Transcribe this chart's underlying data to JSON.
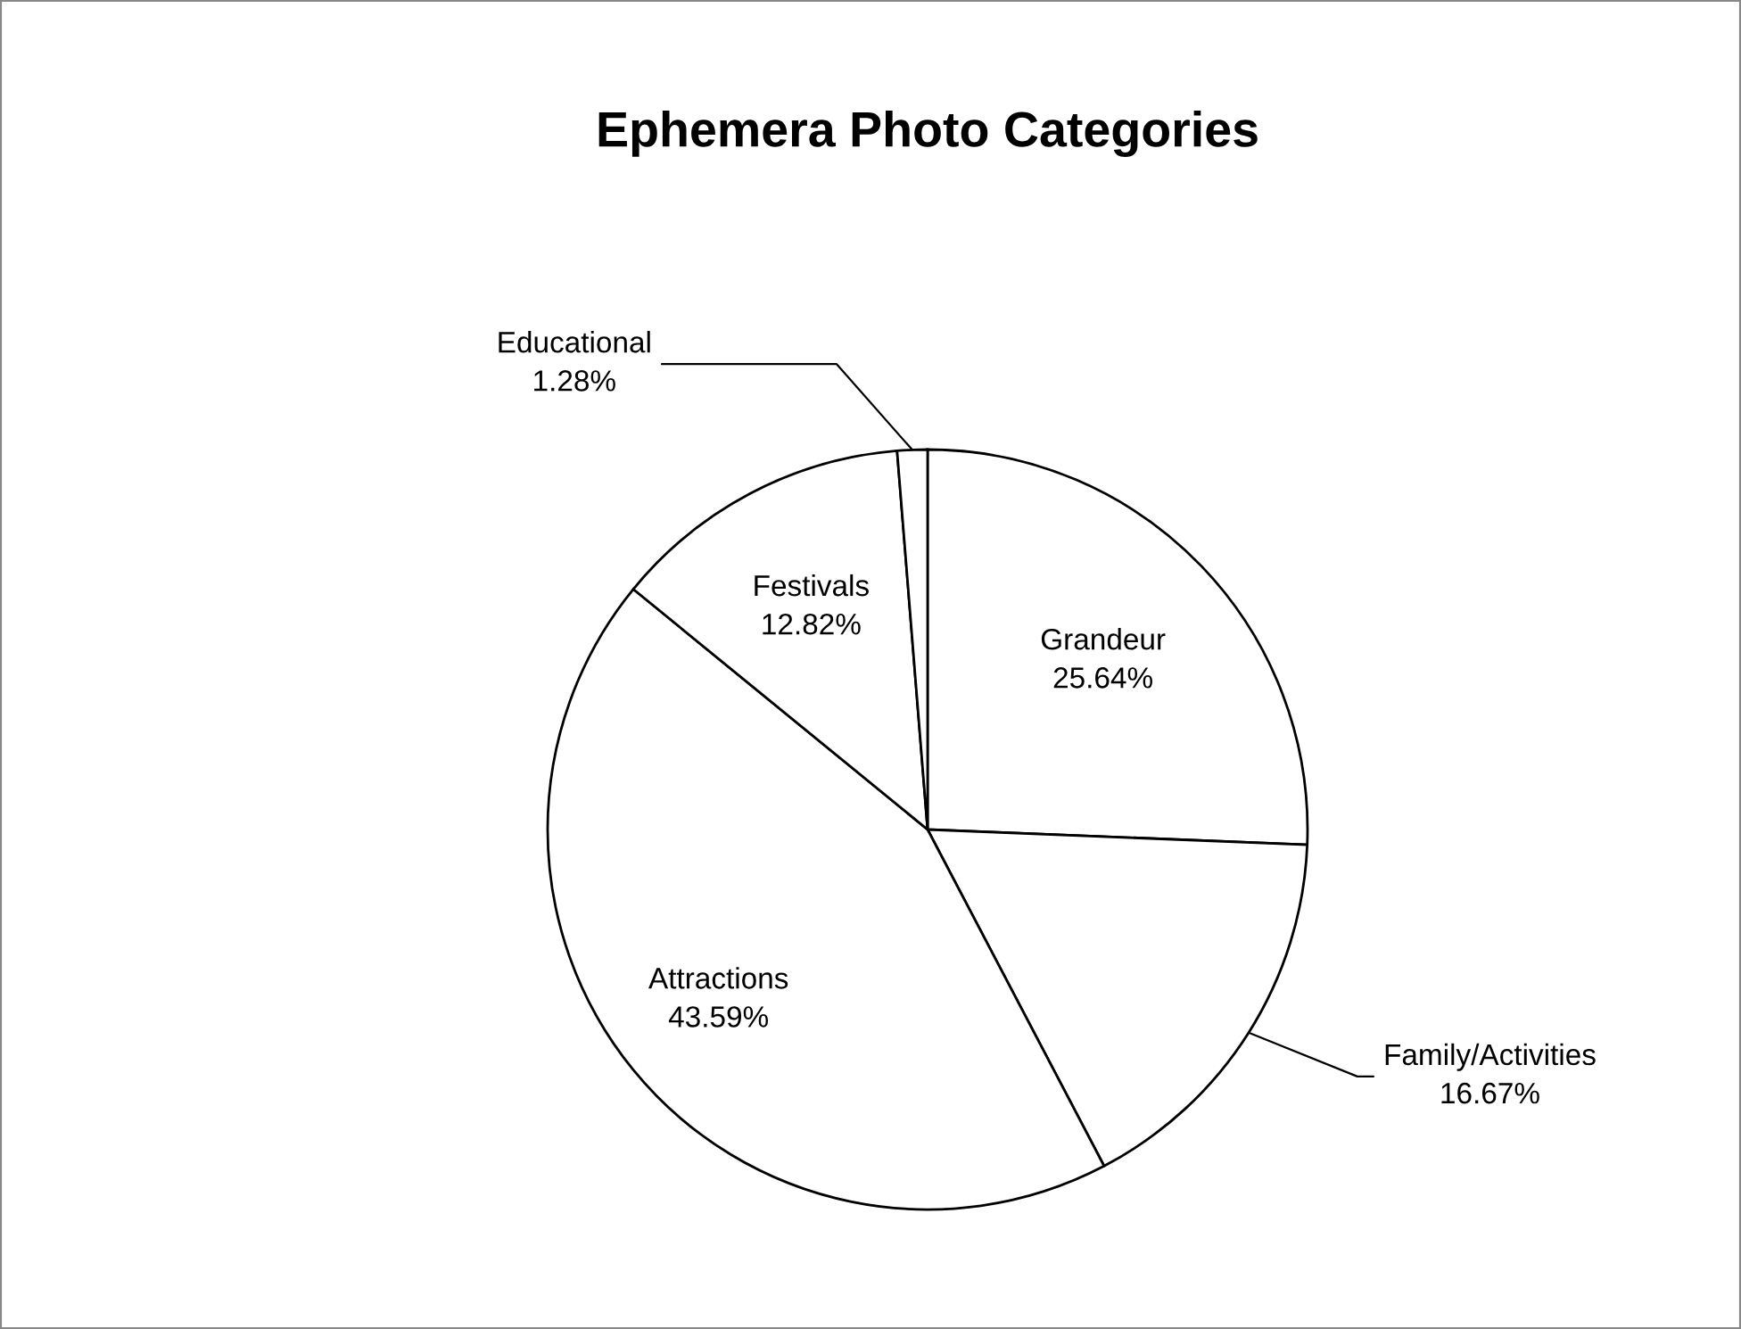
{
  "chart_data": {
    "type": "pie",
    "title": "Ephemera Photo Categories",
    "categories": [
      "Grandeur",
      "Family/Activities",
      "Attractions",
      "Festivals",
      "Educational"
    ],
    "values": [
      25.64,
      16.67,
      43.59,
      12.82,
      1.28
    ],
    "value_labels": [
      "25.64%",
      "16.67%",
      "43.59%",
      "12.82%",
      "1.28%"
    ],
    "colors": [
      "#ffffff",
      "#ffffff",
      "#ffffff",
      "#ffffff",
      "#ffffff"
    ],
    "legend": false
  }
}
